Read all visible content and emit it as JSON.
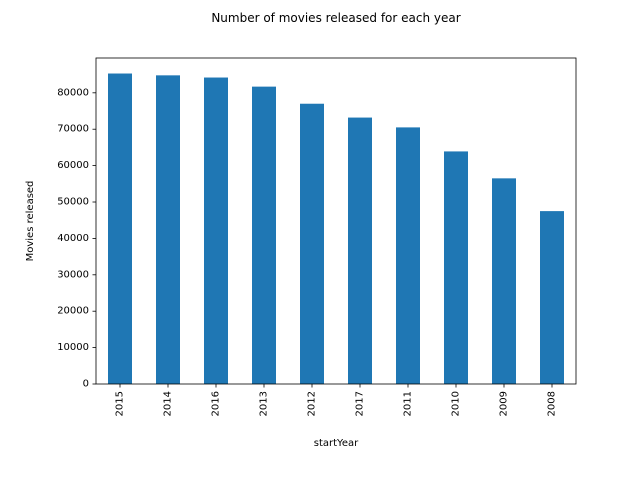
{
  "chart_data": {
    "type": "bar",
    "title": "Number of movies released for each year",
    "xlabel": "startYear",
    "ylabel": "Movies released",
    "categories": [
      "2015",
      "2014",
      "2016",
      "2013",
      "2012",
      "2017",
      "2011",
      "2010",
      "2009",
      "2008"
    ],
    "values": [
      85300,
      84800,
      84200,
      81700,
      77000,
      73200,
      70500,
      63900,
      56500,
      47500
    ],
    "ylim": [
      0,
      89565
    ],
    "yticks": [
      0,
      10000,
      20000,
      30000,
      40000,
      50000,
      60000,
      70000,
      80000
    ],
    "bar_color": "#1f77b4",
    "grid": false,
    "legend": false
  }
}
